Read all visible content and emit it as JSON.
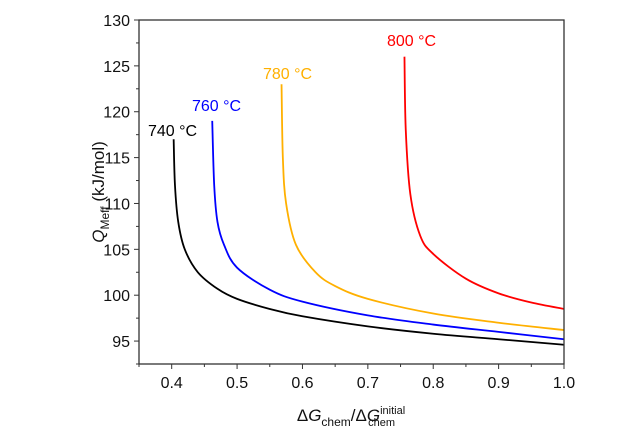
{
  "chart_data": {
    "type": "line",
    "title": "",
    "xlabel": "ΔG_chem/ΔG_chem^initial",
    "xlabel_parts": {
      "delta1": "Δ",
      "g1": "G",
      "sub1": "chem",
      "slash": "/",
      "delta2": "Δ",
      "g2": "G",
      "sup2": "initial",
      "sub2": "chem"
    },
    "ylabel": "Q_Meff (kJ/mol)",
    "ylabel_parts": {
      "q": "Q",
      "sub": "Meff",
      "unit": " (kJ/mol)"
    },
    "xlim": [
      0.35,
      1.0
    ],
    "ylim": [
      92.5,
      130
    ],
    "xticks": [
      0.4,
      0.5,
      0.6,
      0.7,
      0.8,
      0.9,
      1.0
    ],
    "xtick_labels": [
      "0.4",
      "0.5",
      "0.6",
      "0.7",
      "0.8",
      "0.9",
      "1.0"
    ],
    "yticks": [
      95,
      100,
      105,
      110,
      115,
      120,
      125,
      130
    ],
    "ytick_labels": [
      "95",
      "100",
      "105",
      "110",
      "115",
      "120",
      "125",
      "130"
    ],
    "grid": false,
    "legend": "inline labels at top of each curve",
    "series": [
      {
        "name": "740 °C",
        "color": "#000000",
        "x": [
          0.403,
          0.405,
          0.41,
          0.42,
          0.44,
          0.47,
          0.5,
          0.55,
          0.6,
          0.7,
          0.8,
          0.9,
          1.0
        ],
        "y": [
          117,
          112,
          108,
          105,
          102.5,
          100.7,
          99.6,
          98.5,
          97.7,
          96.6,
          95.8,
          95.2,
          94.6
        ]
      },
      {
        "name": "760 °C",
        "color": "#0000ff",
        "x": [
          0.462,
          0.465,
          0.47,
          0.48,
          0.5,
          0.55,
          0.6,
          0.7,
          0.8,
          0.9,
          1.0
        ],
        "y": [
          119,
          112,
          108,
          105.5,
          103,
          100.6,
          99.3,
          97.8,
          96.8,
          96.0,
          95.2
        ]
      },
      {
        "name": "780 °C",
        "color": "#ffb000",
        "x": [
          0.568,
          0.57,
          0.575,
          0.59,
          0.62,
          0.65,
          0.7,
          0.8,
          0.9,
          1.0
        ],
        "y": [
          123,
          115,
          110,
          105.5,
          102.5,
          101,
          99.6,
          98,
          97,
          96.2
        ]
      },
      {
        "name": "800 °C",
        "color": "#ff0000",
        "x": [
          0.756,
          0.758,
          0.765,
          0.78,
          0.8,
          0.85,
          0.9,
          0.95,
          1.0
        ],
        "y": [
          126,
          118,
          111,
          106.5,
          104.5,
          101.8,
          100.2,
          99.2,
          98.5
        ]
      }
    ]
  }
}
